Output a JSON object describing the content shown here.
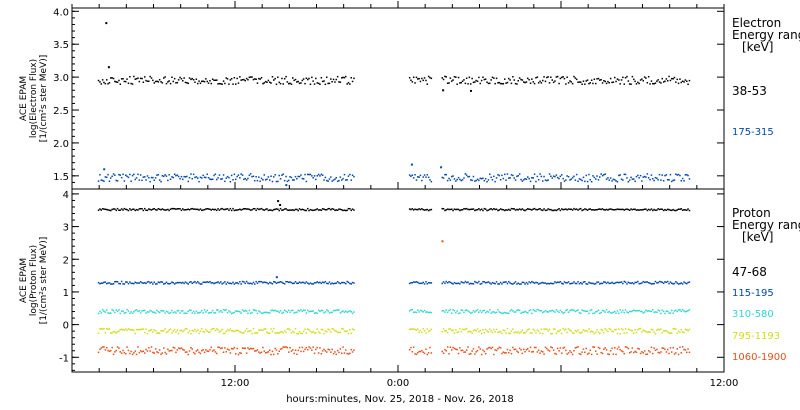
{
  "xlabel": "hours:minutes, Nov. 25, 2018 - Nov. 26, 2018",
  "chart_data": [
    {
      "type": "scatter",
      "panel": "electron",
      "ylabel_lines": [
        "ACE EPAM",
        "log(Electron Flux)",
        "[1/(cm²s ster MeV)]"
      ],
      "ylim": [
        1.3,
        4.05
      ],
      "yticks": [
        1.5,
        2.0,
        2.5,
        3.0,
        3.5,
        4.0
      ],
      "ytick_labels": [
        "1.5",
        "2.0",
        "2.5",
        "3.0",
        "3.5",
        "4.0"
      ],
      "legend_title_lines": [
        "Electron",
        "Energy ranges",
        "[keV]"
      ],
      "series": [
        {
          "name": "38-53",
          "color": "#000000",
          "level": 2.95,
          "jitter": 0.06,
          "extras": [
            [
              2.45,
              3.82
            ],
            [
              2.64,
              3.15
            ],
            [
              27.25,
              2.8
            ],
            [
              29.3,
              2.79
            ]
          ]
        },
        {
          "name": "175-315",
          "color": "#0047b3",
          "level": 1.47,
          "jitter": 0.06,
          "extras": [
            [
              2.3,
              1.6
            ],
            [
              24.95,
              1.67
            ],
            [
              27.1,
              1.63
            ],
            [
              15.7,
              1.36
            ]
          ]
        }
      ]
    },
    {
      "type": "scatter",
      "panel": "proton",
      "ylabel_lines": [
        "ACE EPAM",
        "log(Proton Flux)",
        "[1/(cm²s ster MeV)]"
      ],
      "ylim": [
        -1.45,
        4.15
      ],
      "yticks": [
        -1,
        0,
        1,
        2,
        3,
        4
      ],
      "ytick_labels": [
        "-1",
        "0",
        "1",
        "2",
        "3",
        "4"
      ],
      "legend_title_lines": [
        "Proton",
        "Energy ranges",
        "[keV]"
      ],
      "series": [
        {
          "name": "47-68",
          "color": "#000000",
          "level": 3.52,
          "jitter": 0.03,
          "extras": [
            [
              15.1,
              3.78
            ],
            [
              15.25,
              3.66
            ]
          ]
        },
        {
          "name": "115-195",
          "color": "#0047b3",
          "level": 1.28,
          "jitter": 0.04,
          "extras": [
            [
              15.0,
              1.45
            ]
          ]
        },
        {
          "name": "310-580",
          "color": "#33d6d6",
          "level": 0.4,
          "jitter": 0.06,
          "extras": []
        },
        {
          "name": "795-1193",
          "color": "#d4dc1c",
          "level": -0.2,
          "jitter": 0.08,
          "extras": []
        },
        {
          "name": "1060-1900",
          "color": "#e8501a",
          "level": -0.8,
          "jitter": 0.12,
          "extras": [
            [
              27.2,
              2.55
            ]
          ]
        }
      ]
    }
  ],
  "x_axis": {
    "range_hours": [
      0,
      48
    ],
    "data_segments": [
      [
        1.9,
        20.8
      ],
      [
        24.8,
        26.5
      ],
      [
        27.2,
        45.5
      ]
    ],
    "major_ticks": [
      12,
      36
    ],
    "tick_labels": [
      {
        "hour": 12,
        "label": "12:00"
      },
      {
        "hour": 24,
        "label": "0:00"
      },
      {
        "hour": 48,
        "label": "12:00"
      }
    ]
  }
}
